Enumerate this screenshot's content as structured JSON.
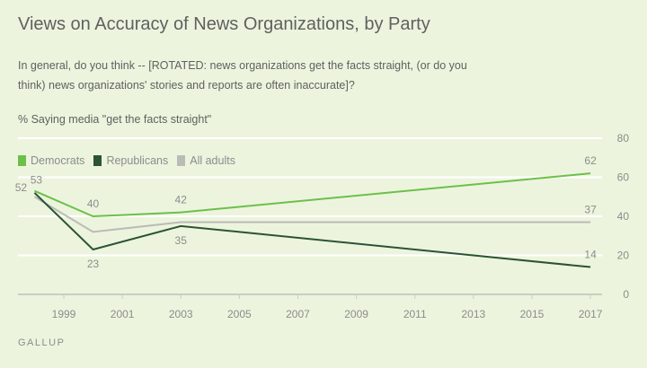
{
  "chart_data": {
    "type": "line",
    "title": "Views on Accuracy of News Organizations, by Party",
    "subtitle": "In general, do you think -- [ROTATED: news organizations get the facts straight, (or do you think) news organizations' stories and reports are often inaccurate]?",
    "measure": "% Saying media \"get the facts straight\"",
    "source": "GALLUP",
    "x": [
      1998,
      2000,
      2003,
      2017
    ],
    "xticks": [
      1999,
      2001,
      2003,
      2005,
      2007,
      2009,
      2011,
      2013,
      2015,
      2017
    ],
    "yticks": [
      0,
      20,
      40,
      60,
      80
    ],
    "ylim": [
      0,
      80
    ],
    "xlim": [
      1998,
      2017
    ],
    "grid": true,
    "legend_placement": "top-left",
    "series": [
      {
        "name": "Democrats",
        "color": "#6cc04a",
        "values": [
          53,
          40,
          42,
          62
        ],
        "labels": [
          "53",
          "40",
          "42",
          "62"
        ]
      },
      {
        "name": "Republicans",
        "color": "#2a5434",
        "values": [
          52,
          23,
          35,
          14
        ],
        "labels": [
          "52",
          "23",
          "35",
          "14"
        ]
      },
      {
        "name": "All adults",
        "color": "#b9bcb6",
        "values": [
          50,
          32,
          37,
          37
        ],
        "labels": [
          "",
          "",
          "",
          "37"
        ]
      }
    ]
  }
}
